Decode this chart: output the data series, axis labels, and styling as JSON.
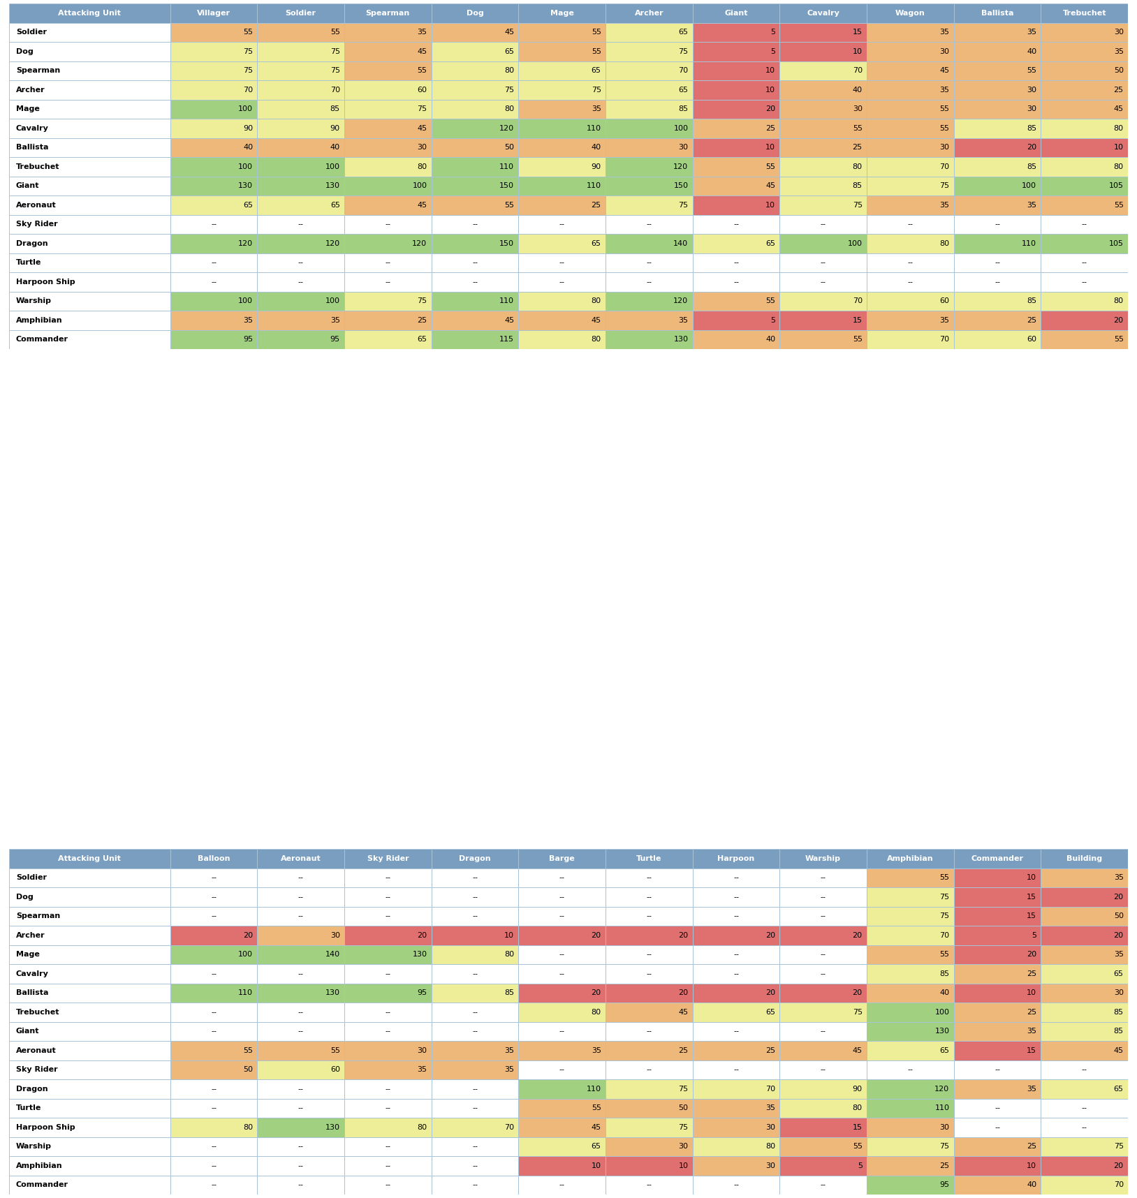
{
  "table1_header": [
    "Attacking Unit",
    "Villager",
    "Soldier",
    "Spearman",
    "Dog",
    "Mage",
    "Archer",
    "Giant",
    "Cavalry",
    "Wagon",
    "Ballista",
    "Trebuchet"
  ],
  "table1_rows": [
    [
      "Soldier",
      55,
      55,
      35,
      45,
      55,
      65,
      5,
      15,
      35,
      35,
      30
    ],
    [
      "Dog",
      75,
      75,
      45,
      65,
      55,
      75,
      5,
      10,
      30,
      40,
      35
    ],
    [
      "Spearman",
      75,
      75,
      55,
      80,
      65,
      70,
      10,
      70,
      45,
      55,
      50
    ],
    [
      "Archer",
      70,
      70,
      60,
      75,
      75,
      65,
      10,
      40,
      35,
      30,
      25
    ],
    [
      "Mage",
      100,
      85,
      75,
      80,
      35,
      85,
      20,
      30,
      55,
      30,
      45
    ],
    [
      "Cavalry",
      90,
      90,
      45,
      120,
      110,
      100,
      25,
      55,
      55,
      85,
      80
    ],
    [
      "Ballista",
      40,
      40,
      30,
      50,
      40,
      30,
      10,
      25,
      30,
      20,
      10
    ],
    [
      "Trebuchet",
      100,
      100,
      80,
      110,
      90,
      120,
      55,
      80,
      70,
      85,
      80
    ],
    [
      "Giant",
      130,
      130,
      100,
      150,
      110,
      150,
      45,
      85,
      75,
      100,
      105
    ],
    [
      "Aeronaut",
      65,
      65,
      45,
      55,
      25,
      75,
      10,
      75,
      35,
      35,
      55
    ],
    [
      "Sky Rider",
      "--",
      "--",
      "--",
      "--",
      "--",
      "--",
      "--",
      "--",
      "--",
      "--",
      "--"
    ],
    [
      "Dragon",
      120,
      120,
      120,
      150,
      65,
      140,
      65,
      100,
      80,
      110,
      105
    ],
    [
      "Turtle",
      "--",
      "--",
      "--",
      "--",
      "--",
      "--",
      "--",
      "--",
      "--",
      "--",
      "--"
    ],
    [
      "Harpoon Ship",
      "--",
      "--",
      "--",
      "--",
      "--",
      "--",
      "--",
      "--",
      "--",
      "--",
      "--"
    ],
    [
      "Warship",
      100,
      100,
      75,
      110,
      80,
      120,
      55,
      70,
      60,
      85,
      80
    ],
    [
      "Amphibian",
      35,
      35,
      25,
      45,
      45,
      35,
      5,
      15,
      35,
      25,
      20
    ],
    [
      "Commander",
      95,
      95,
      65,
      115,
      80,
      130,
      40,
      55,
      70,
      60,
      55
    ]
  ],
  "table2_header": [
    "Attacking Unit",
    "Balloon",
    "Aeronaut",
    "Sky Rider",
    "Dragon",
    "Barge",
    "Turtle",
    "Harpoon",
    "Warship",
    "Amphibian",
    "Commander",
    "Building"
  ],
  "table2_rows": [
    [
      "Soldier",
      "--",
      "--",
      "--",
      "--",
      "--",
      "--",
      "--",
      "--",
      55,
      10,
      35
    ],
    [
      "Dog",
      "--",
      "--",
      "--",
      "--",
      "--",
      "--",
      "--",
      "--",
      75,
      15,
      20
    ],
    [
      "Spearman",
      "--",
      "--",
      "--",
      "--",
      "--",
      "--",
      "--",
      "--",
      75,
      15,
      50
    ],
    [
      "Archer",
      20,
      30,
      20,
      10,
      20,
      20,
      20,
      20,
      70,
      5,
      20
    ],
    [
      "Mage",
      100,
      140,
      130,
      80,
      "--",
      "--",
      "--",
      "--",
      55,
      20,
      35
    ],
    [
      "Cavalry",
      "--",
      "--",
      "--",
      "--",
      "--",
      "--",
      "--",
      "--",
      85,
      25,
      65
    ],
    [
      "Ballista",
      110,
      130,
      95,
      85,
      20,
      20,
      20,
      20,
      40,
      10,
      30
    ],
    [
      "Trebuchet",
      "--",
      "--",
      "--",
      "--",
      80,
      45,
      65,
      75,
      100,
      25,
      85
    ],
    [
      "Giant",
      "--",
      "--",
      "--",
      "--",
      "--",
      "--",
      "--",
      "--",
      130,
      35,
      85
    ],
    [
      "Aeronaut",
      55,
      55,
      30,
      35,
      35,
      25,
      25,
      45,
      65,
      15,
      45
    ],
    [
      "Sky Rider",
      50,
      60,
      35,
      35,
      "--",
      "--",
      "--",
      "--",
      "--",
      "--",
      "--"
    ],
    [
      "Dragon",
      "--",
      "--",
      "--",
      "--",
      110,
      75,
      70,
      90,
      120,
      35,
      65
    ],
    [
      "Turtle",
      "--",
      "--",
      "--",
      "--",
      55,
      50,
      35,
      80,
      110,
      "--",
      "--"
    ],
    [
      "Harpoon Ship",
      80,
      130,
      80,
      70,
      45,
      75,
      30,
      15,
      30,
      "--",
      "--"
    ],
    [
      "Warship",
      "--",
      "--",
      "--",
      "--",
      65,
      30,
      80,
      55,
      75,
      25,
      75
    ],
    [
      "Amphibian",
      "--",
      "--",
      "--",
      "--",
      10,
      10,
      30,
      5,
      25,
      10,
      20
    ],
    [
      "Commander",
      "--",
      "--",
      "--",
      "--",
      "--",
      "--",
      "--",
      "--",
      95,
      40,
      70
    ]
  ],
  "header_bg": "#7a9ebf",
  "header_text": "#ffffff",
  "colors": {
    "red": "#e07070",
    "orange": "#edb87a",
    "yellow": "#eeee99",
    "green": "#a0d080",
    "white": "#ffffff"
  },
  "cell_edge": "#a8c4d8",
  "figsize": [
    16.28,
    17.16
  ],
  "dpi": 100
}
